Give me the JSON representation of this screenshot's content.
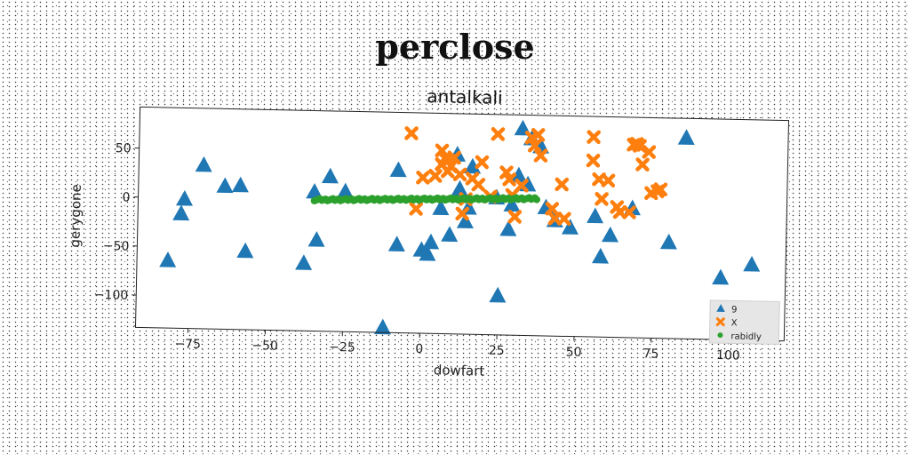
{
  "suptitle": "perclose",
  "chart_data": {
    "type": "scatter",
    "title": "antalkali",
    "xlabel": "dowfart",
    "ylabel": "gerygone",
    "xlim": [
      -92,
      118
    ],
    "ylim": [
      -133,
      92
    ],
    "xticks": [
      -75,
      -50,
      -25,
      0,
      25,
      50,
      75,
      100
    ],
    "xtick_labels": [
      "−75",
      "−50",
      "−25",
      "0",
      "25",
      "50",
      "75",
      "100"
    ],
    "yticks": [
      -100,
      -50,
      0,
      50
    ],
    "ytick_labels": [
      "−100",
      "−50",
      "0",
      "50"
    ],
    "grid": false,
    "legend_position": "lower-right",
    "series": [
      {
        "name": "9",
        "marker": "triangle",
        "color": "#1f77b4",
        "points": [
          [
            -82,
            -64
          ],
          [
            -77,
            -1
          ],
          [
            -78,
            -16
          ],
          [
            -71,
            34
          ],
          [
            -64,
            13
          ],
          [
            -59,
            14
          ],
          [
            -57,
            -53
          ],
          [
            -38,
            -64
          ],
          [
            -35,
            9
          ],
          [
            -34,
            -40
          ],
          [
            -30,
            25
          ],
          [
            -25,
            10
          ],
          [
            -12,
            -128
          ],
          [
            -8,
            33
          ],
          [
            -8,
            -43
          ],
          [
            0,
            -48
          ],
          [
            2,
            -52
          ],
          [
            3,
            -40
          ],
          [
            6,
            -5
          ],
          [
            9,
            -32
          ],
          [
            11,
            50
          ],
          [
            12,
            15
          ],
          [
            14,
            -18
          ],
          [
            15,
            -4
          ],
          [
            16,
            38
          ],
          [
            24,
            7
          ],
          [
            25,
            -93
          ],
          [
            28,
            -25
          ],
          [
            29,
            0
          ],
          [
            31,
            30
          ],
          [
            32,
            78
          ],
          [
            34,
            21
          ],
          [
            35,
            68
          ],
          [
            38,
            60
          ],
          [
            40,
            -2
          ],
          [
            43,
            -15
          ],
          [
            48,
            -22
          ],
          [
            56,
            -10
          ],
          [
            58,
            -51
          ],
          [
            61,
            -29
          ],
          [
            68,
            -1
          ],
          [
            80,
            -35
          ],
          [
            85,
            72
          ],
          [
            97,
            -70
          ],
          [
            107,
            -56
          ]
        ]
      },
      {
        "name": "X",
        "marker": "x",
        "color": "#ff7f0e",
        "points": [
          [
            -4,
            71
          ],
          [
            -2,
            -6
          ],
          [
            0,
            26
          ],
          [
            4,
            28
          ],
          [
            6,
            54
          ],
          [
            6,
            40
          ],
          [
            7,
            46
          ],
          [
            8,
            44
          ],
          [
            8,
            33
          ],
          [
            9,
            38
          ],
          [
            10,
            47
          ],
          [
            12,
            30
          ],
          [
            13,
            -10
          ],
          [
            14,
            5
          ],
          [
            16,
            26
          ],
          [
            18,
            20
          ],
          [
            19,
            43
          ],
          [
            22,
            8
          ],
          [
            24,
            72
          ],
          [
            27,
            33
          ],
          [
            28,
            26
          ],
          [
            29,
            10
          ],
          [
            30,
            -12
          ],
          [
            32,
            20
          ],
          [
            35,
            69
          ],
          [
            36,
            61
          ],
          [
            37,
            72
          ],
          [
            38,
            51
          ],
          [
            42,
            -3
          ],
          [
            43,
            -13
          ],
          [
            45,
            22
          ],
          [
            46,
            -13
          ],
          [
            55,
            71
          ],
          [
            55,
            47
          ],
          [
            57,
            28
          ],
          [
            58,
            8
          ],
          [
            60,
            27
          ],
          [
            63,
            0
          ],
          [
            64,
            -5
          ],
          [
            67,
            -5
          ],
          [
            68,
            64
          ],
          [
            69,
            65
          ],
          [
            70,
            63
          ],
          [
            71,
            44
          ],
          [
            73,
            57
          ],
          [
            74,
            15
          ],
          [
            76,
            17
          ],
          [
            77,
            19
          ]
        ]
      },
      {
        "name": "rabidly",
        "marker": "circle",
        "color": "#2ca02c",
        "line": {
          "x_from": -35,
          "x_to": 37,
          "y_from": 1,
          "y_to": 7,
          "count": 120
        }
      }
    ]
  }
}
